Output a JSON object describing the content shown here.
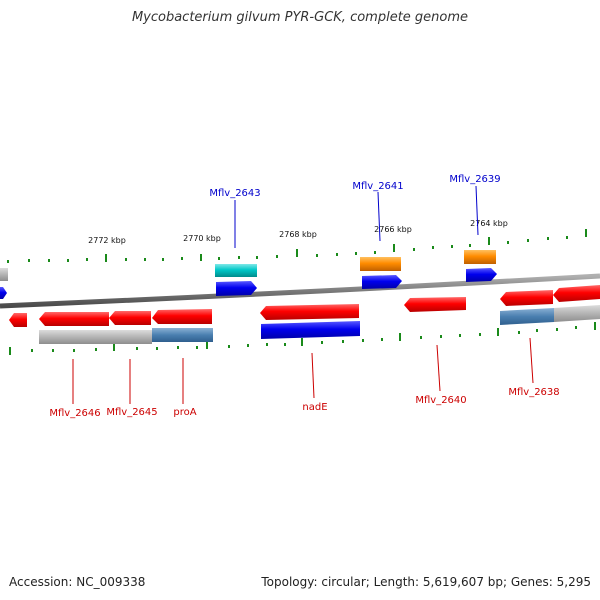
{
  "title": "Mycobacterium gilvum PYR-GCK, complete genome",
  "accession": "Accession: NC_009338",
  "summary": "Topology: circular; Length: 5,619,607 bp; Genes: 5,295",
  "scale_labels": [
    "2772 kbp",
    "2770 kbp",
    "2768 kbp",
    "2766 kbp",
    "2764 kbp"
  ],
  "gene_labels_top": [
    "Mflv_2643",
    "Mflv_2641",
    "Mflv_2639"
  ],
  "gene_labels_bottom": [
    "Mflv_2646",
    "Mflv_2645",
    "proA",
    "nadE",
    "Mflv_2640",
    "Mflv_2638"
  ],
  "colors": {
    "forward_label": "#0000cc",
    "reverse_label": "#cc0000",
    "red": "#ff0000",
    "blue": "#0000ee",
    "cyan": "#00c8c8",
    "orange": "#ff8c00",
    "gray": "#b4b4b4",
    "steel": "#4a7fb0",
    "tick": "#1a8a1a",
    "backbone": "#7a7a7a"
  }
}
